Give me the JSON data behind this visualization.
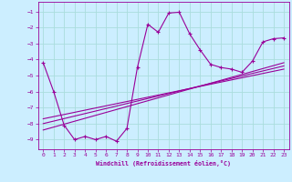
{
  "xlabel": "Windchill (Refroidissement éolien,°C)",
  "background_color": "#cceeff",
  "line_color": "#990099",
  "grid_color": "#aadddd",
  "xlim": [
    -0.5,
    23.5
  ],
  "ylim": [
    -9.6,
    -0.4
  ],
  "yticks": [
    -9,
    -8,
    -7,
    -6,
    -5,
    -4,
    -3,
    -2,
    -1
  ],
  "xticks": [
    0,
    1,
    2,
    3,
    4,
    5,
    6,
    7,
    8,
    9,
    10,
    11,
    12,
    13,
    14,
    15,
    16,
    17,
    18,
    19,
    20,
    21,
    22,
    23
  ],
  "series": [
    [
      0,
      -4.2
    ],
    [
      1,
      -6.0
    ],
    [
      2,
      -8.1
    ],
    [
      3,
      -9.0
    ],
    [
      4,
      -8.8
    ],
    [
      5,
      -9.0
    ],
    [
      6,
      -8.8
    ],
    [
      7,
      -9.1
    ],
    [
      8,
      -8.3
    ],
    [
      9,
      -4.5
    ],
    [
      10,
      -1.8
    ],
    [
      11,
      -2.3
    ],
    [
      12,
      -1.1
    ],
    [
      13,
      -1.05
    ],
    [
      14,
      -2.4
    ],
    [
      15,
      -3.4
    ],
    [
      16,
      -4.3
    ],
    [
      17,
      -4.5
    ],
    [
      18,
      -4.6
    ],
    [
      19,
      -4.8
    ],
    [
      20,
      -4.1
    ],
    [
      21,
      -2.9
    ],
    [
      22,
      -2.7
    ],
    [
      23,
      -2.65
    ]
  ],
  "diag_lines": [
    [
      [
        0,
        -8.0
      ],
      [
        23,
        -4.4
      ]
    ],
    [
      [
        0,
        -8.4
      ],
      [
        23,
        -4.2
      ]
    ],
    [
      [
        0,
        -7.7
      ],
      [
        23,
        -4.6
      ]
    ]
  ]
}
